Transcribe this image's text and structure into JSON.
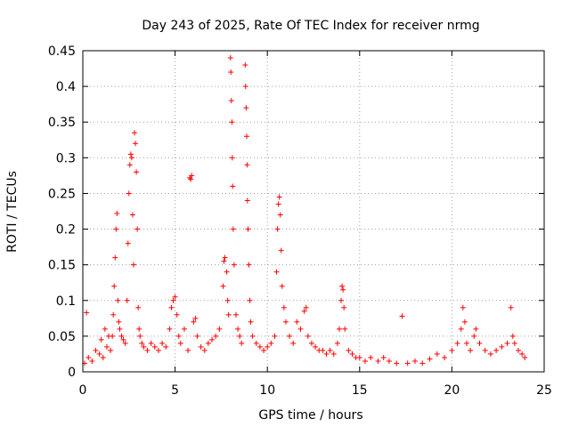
{
  "chart_data": {
    "type": "scatter",
    "title": "Day 243 of 2025, Rate Of TEC Index for receiver nrmg",
    "xlabel": "GPS time / hours",
    "ylabel": "ROTI / TECUs",
    "xlim": [
      0,
      25
    ],
    "ylim": [
      0,
      0.45
    ],
    "xticks": [
      0,
      5,
      10,
      15,
      20,
      25
    ],
    "yticks": [
      0,
      0.05,
      0.1,
      0.15,
      0.2,
      0.25,
      0.3,
      0.35,
      0.4,
      0.45
    ],
    "xtick_labels": [
      "0",
      "5",
      "10",
      "15",
      "20",
      "25"
    ],
    "ytick_labels": [
      "0",
      "0.05",
      "0.1",
      "0.15",
      "0.2",
      "0.25",
      "0.3",
      "0.35",
      "0.4",
      "0.45"
    ],
    "grid": true,
    "marker": "+",
    "color": "#ff0000",
    "series": [
      {
        "points": [
          [
            0.1,
            0.012
          ],
          [
            0.2,
            0.083
          ],
          [
            0.3,
            0.02
          ],
          [
            0.5,
            0.015
          ],
          [
            0.7,
            0.03
          ],
          [
            0.9,
            0.025
          ],
          [
            1.0,
            0.045
          ],
          [
            1.1,
            0.02
          ],
          [
            1.2,
            0.06
          ],
          [
            1.3,
            0.035
          ],
          [
            1.4,
            0.05
          ],
          [
            1.5,
            0.03
          ],
          [
            1.6,
            0.05
          ],
          [
            1.65,
            0.08
          ],
          [
            1.7,
            0.12
          ],
          [
            1.75,
            0.16
          ],
          [
            1.8,
            0.2
          ],
          [
            1.85,
            0.222
          ],
          [
            1.9,
            0.1
          ],
          [
            1.95,
            0.07
          ],
          [
            2.0,
            0.06
          ],
          [
            2.1,
            0.05
          ],
          [
            2.2,
            0.045
          ],
          [
            2.3,
            0.04
          ],
          [
            2.4,
            0.1
          ],
          [
            2.45,
            0.18
          ],
          [
            2.5,
            0.25
          ],
          [
            2.55,
            0.29
          ],
          [
            2.6,
            0.305
          ],
          [
            2.65,
            0.3
          ],
          [
            2.7,
            0.22
          ],
          [
            2.75,
            0.15
          ],
          [
            2.8,
            0.335
          ],
          [
            2.85,
            0.32
          ],
          [
            2.9,
            0.28
          ],
          [
            2.95,
            0.2
          ],
          [
            3.0,
            0.09
          ],
          [
            3.05,
            0.06
          ],
          [
            3.1,
            0.05
          ],
          [
            3.2,
            0.04
          ],
          [
            3.3,
            0.035
          ],
          [
            3.5,
            0.03
          ],
          [
            3.7,
            0.04
          ],
          [
            3.9,
            0.035
          ],
          [
            4.1,
            0.03
          ],
          [
            4.3,
            0.04
          ],
          [
            4.5,
            0.035
          ],
          [
            4.7,
            0.06
          ],
          [
            4.8,
            0.09
          ],
          [
            4.9,
            0.1
          ],
          [
            5.0,
            0.105
          ],
          [
            5.1,
            0.08
          ],
          [
            5.2,
            0.05
          ],
          [
            5.3,
            0.04
          ],
          [
            5.5,
            0.06
          ],
          [
            5.7,
            0.03
          ],
          [
            5.8,
            0.272
          ],
          [
            5.85,
            0.27
          ],
          [
            5.9,
            0.275
          ],
          [
            6.0,
            0.07
          ],
          [
            6.1,
            0.075
          ],
          [
            6.2,
            0.05
          ],
          [
            6.4,
            0.035
          ],
          [
            6.6,
            0.03
          ],
          [
            6.8,
            0.04
          ],
          [
            7.0,
            0.045
          ],
          [
            7.2,
            0.05
          ],
          [
            7.4,
            0.06
          ],
          [
            7.6,
            0.12
          ],
          [
            7.65,
            0.155
          ],
          [
            7.7,
            0.16
          ],
          [
            7.8,
            0.14
          ],
          [
            7.85,
            0.1
          ],
          [
            7.9,
            0.08
          ],
          [
            8.0,
            0.44
          ],
          [
            8.02,
            0.42
          ],
          [
            8.05,
            0.38
          ],
          [
            8.08,
            0.35
          ],
          [
            8.1,
            0.3
          ],
          [
            8.12,
            0.26
          ],
          [
            8.15,
            0.2
          ],
          [
            8.2,
            0.15
          ],
          [
            8.3,
            0.08
          ],
          [
            8.4,
            0.06
          ],
          [
            8.5,
            0.05
          ],
          [
            8.6,
            0.04
          ],
          [
            8.8,
            0.43
          ],
          [
            8.82,
            0.4
          ],
          [
            8.85,
            0.37
          ],
          [
            8.88,
            0.33
          ],
          [
            8.9,
            0.29
          ],
          [
            8.92,
            0.24
          ],
          [
            8.95,
            0.2
          ],
          [
            9.0,
            0.15
          ],
          [
            9.05,
            0.1
          ],
          [
            9.1,
            0.07
          ],
          [
            9.2,
            0.05
          ],
          [
            9.4,
            0.04
          ],
          [
            9.6,
            0.035
          ],
          [
            9.8,
            0.03
          ],
          [
            10.0,
            0.035
          ],
          [
            10.2,
            0.04
          ],
          [
            10.4,
            0.05
          ],
          [
            10.5,
            0.14
          ],
          [
            10.55,
            0.2
          ],
          [
            10.6,
            0.235
          ],
          [
            10.65,
            0.245
          ],
          [
            10.7,
            0.22
          ],
          [
            10.75,
            0.17
          ],
          [
            10.8,
            0.12
          ],
          [
            10.9,
            0.09
          ],
          [
            11.0,
            0.07
          ],
          [
            11.2,
            0.05
          ],
          [
            11.4,
            0.04
          ],
          [
            11.6,
            0.07
          ],
          [
            11.8,
            0.06
          ],
          [
            12.0,
            0.085
          ],
          [
            12.1,
            0.09
          ],
          [
            12.2,
            0.05
          ],
          [
            12.4,
            0.04
          ],
          [
            12.6,
            0.035
          ],
          [
            12.8,
            0.03
          ],
          [
            13.0,
            0.03
          ],
          [
            13.2,
            0.025
          ],
          [
            13.4,
            0.03
          ],
          [
            13.6,
            0.025
          ],
          [
            13.8,
            0.04
          ],
          [
            13.9,
            0.06
          ],
          [
            14.0,
            0.1
          ],
          [
            14.05,
            0.12
          ],
          [
            14.1,
            0.115
          ],
          [
            14.15,
            0.09
          ],
          [
            14.2,
            0.06
          ],
          [
            14.4,
            0.03
          ],
          [
            14.6,
            0.025
          ],
          [
            14.8,
            0.02
          ],
          [
            15.0,
            0.02
          ],
          [
            15.3,
            0.015
          ],
          [
            15.6,
            0.02
          ],
          [
            16.0,
            0.015
          ],
          [
            16.3,
            0.02
          ],
          [
            16.6,
            0.015
          ],
          [
            17.0,
            0.012
          ],
          [
            17.3,
            0.078
          ],
          [
            17.6,
            0.012
          ],
          [
            18.0,
            0.015
          ],
          [
            18.4,
            0.012
          ],
          [
            18.8,
            0.018
          ],
          [
            19.2,
            0.025
          ],
          [
            19.6,
            0.02
          ],
          [
            20.0,
            0.03
          ],
          [
            20.3,
            0.04
          ],
          [
            20.5,
            0.06
          ],
          [
            20.6,
            0.09
          ],
          [
            20.7,
            0.07
          ],
          [
            20.8,
            0.04
          ],
          [
            21.0,
            0.03
          ],
          [
            21.2,
            0.05
          ],
          [
            21.3,
            0.06
          ],
          [
            21.5,
            0.04
          ],
          [
            21.8,
            0.03
          ],
          [
            22.1,
            0.025
          ],
          [
            22.4,
            0.03
          ],
          [
            22.7,
            0.035
          ],
          [
            23.0,
            0.04
          ],
          [
            23.2,
            0.09
          ],
          [
            23.3,
            0.05
          ],
          [
            23.4,
            0.04
          ],
          [
            23.6,
            0.03
          ],
          [
            23.8,
            0.025
          ],
          [
            23.95,
            0.02
          ]
        ]
      }
    ]
  }
}
